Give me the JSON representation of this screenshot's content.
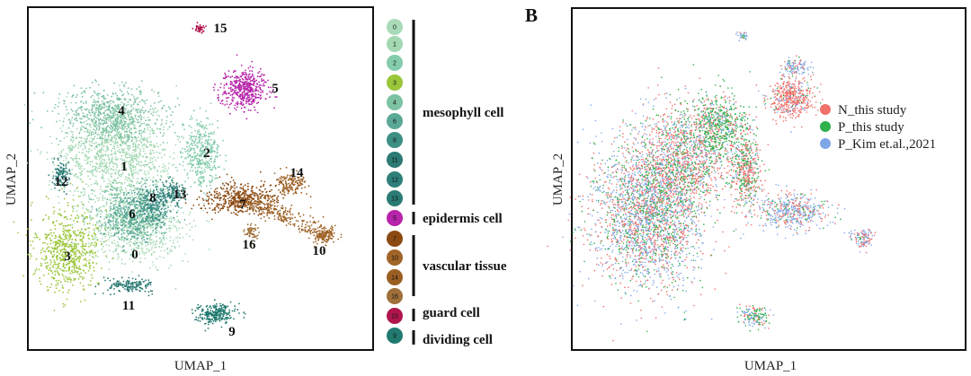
{
  "panel_label": "B",
  "chart_data": [
    {
      "type": "scatter",
      "name": "left-umap",
      "xlabel": "UMAP_1",
      "ylabel": "UMAP_2",
      "grid": false,
      "cluster_labels": [
        "15",
        "5",
        "4",
        "2",
        "1",
        "12",
        "8",
        "13",
        "6",
        "7",
        "14",
        "16",
        "10",
        "3",
        "0",
        "11",
        "9"
      ],
      "colors": {
        "0": "#a9dbb8",
        "1": "#a3d8b2",
        "2": "#84ccab",
        "3": "#9bc63a",
        "4": "#7dc2a3",
        "6": "#5aa896",
        "8": "#3d8f86",
        "11": "#2b7a73",
        "12": "#2e7f79",
        "13": "#2a7b74",
        "5": "#b723aa",
        "7": "#8b4a12",
        "10": "#a06428",
        "14": "#9b5e22",
        "16": "#a0703a",
        "15": "#b0154e",
        "9": "#217a70"
      },
      "legend": {
        "placement": "right",
        "groups": [
          {
            "name": "mesophyll cell",
            "clusters": [
              "0",
              "1",
              "2",
              "3",
              "4",
              "6",
              "8",
              "11",
              "12",
              "13"
            ]
          },
          {
            "name": "epidermis cell",
            "clusters": [
              "5"
            ]
          },
          {
            "name": "vascular tissue",
            "clusters": [
              "7",
              "10",
              "14",
              "16"
            ]
          },
          {
            "name": "guard cell",
            "clusters": [
              "15"
            ]
          },
          {
            "name": "dividing cell",
            "clusters": [
              "9"
            ]
          }
        ]
      }
    },
    {
      "type": "scatter",
      "name": "right-umap",
      "xlabel": "UMAP_1",
      "ylabel": "UMAP_2",
      "grid": false,
      "legend": {
        "placement": "top-right",
        "series": [
          {
            "name": "N_this study",
            "color": "#f0706a"
          },
          {
            "name": "P_this study",
            "color": "#2fb04a"
          },
          {
            "name": "P_Kim et.al.,2021",
            "color": "#7fa7e8"
          }
        ]
      }
    }
  ]
}
